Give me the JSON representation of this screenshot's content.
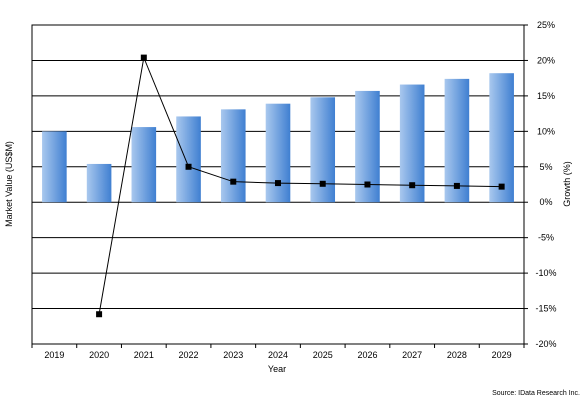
{
  "chart_data": {
    "type": "bar",
    "combo": "bar with line on secondary axis",
    "categories": [
      "2019",
      "2020",
      "2021",
      "2022",
      "2023",
      "2024",
      "2025",
      "2026",
      "2027",
      "2028",
      "2029"
    ],
    "series": [
      {
        "kind": "bar",
        "axis": "primary",
        "values": [
          10.0,
          5.4,
          10.6,
          12.1,
          13.1,
          13.9,
          14.8,
          15.7,
          16.6,
          17.4,
          18.2
        ]
      },
      {
        "kind": "line",
        "axis": "secondary",
        "values": [
          null,
          -15.8,
          20.4,
          5.0,
          2.9,
          2.7,
          2.6,
          2.5,
          2.4,
          2.3,
          2.2
        ]
      }
    ],
    "xlabel": "Year",
    "ylabel": "Market Value (US$M)",
    "y2label": "Growth (%)",
    "ylim": [
      -20,
      25
    ],
    "y2lim": [
      -20,
      25
    ],
    "y2_ticks": [
      "25%",
      "20%",
      "15%",
      "10%",
      "5%",
      "0%",
      "-5%",
      "-10%",
      "-15%",
      "-20%"
    ],
    "y2_tick_values": [
      25,
      20,
      15,
      10,
      5,
      0,
      -5,
      -10,
      -15,
      -20
    ],
    "grid": "horizontal",
    "legend": "none",
    "source": "Source: IData Research Inc.",
    "colors": {
      "bar_light": "#a9c8ee",
      "bar_dark": "#3f7fd1",
      "line": "#000000",
      "marker": "#000000",
      "grid": "#000000"
    }
  }
}
